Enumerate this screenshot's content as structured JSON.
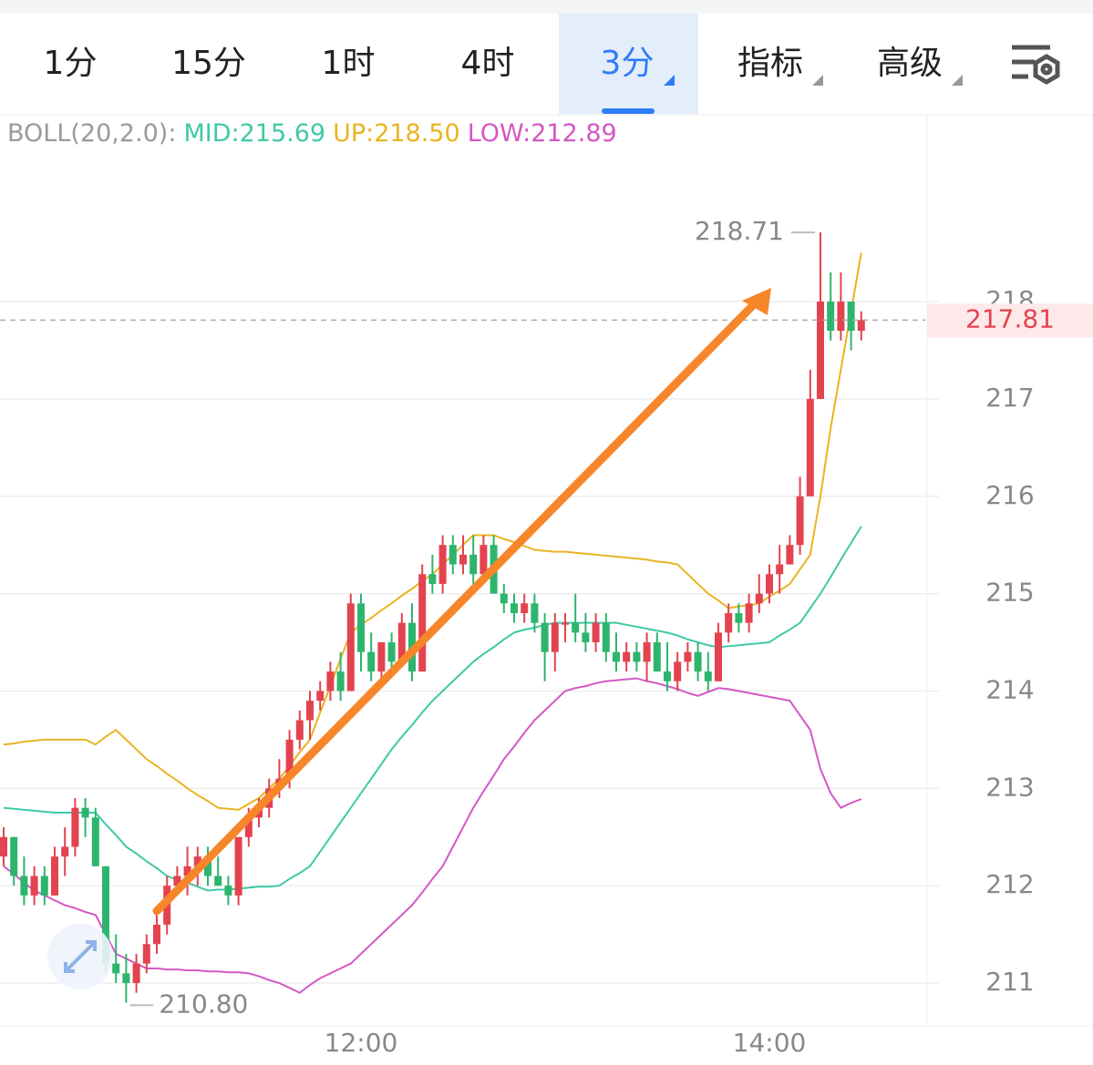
{
  "toolbar": {
    "tabs": [
      "1分",
      "15分",
      "1时",
      "4时",
      "3分",
      "指标",
      "高级"
    ],
    "selected": 4
  },
  "chart_data": {
    "type": "candlestick",
    "legend": [
      "BOLL(20,2.0):",
      "MID:215.69",
      "UP:218.50",
      "LOW:212.89"
    ],
    "categories": [
      null,
      null,
      null,
      null,
      null,
      null,
      null,
      null,
      null,
      null,
      null,
      null,
      null,
      null,
      null,
      null,
      null,
      null,
      null,
      null,
      null,
      null,
      null,
      null,
      null,
      null,
      null,
      null,
      null,
      null,
      null,
      null,
      null,
      null,
      null,
      "12:00",
      null,
      null,
      null,
      null,
      null,
      null,
      null,
      null,
      null,
      null,
      null,
      null,
      null,
      null,
      null,
      null,
      null,
      null,
      null,
      null,
      null,
      null,
      null,
      null,
      null,
      null,
      null,
      null,
      null,
      null,
      null,
      null,
      null,
      null,
      null,
      null,
      null,
      null,
      null,
      "14:00",
      null,
      null,
      null,
      null,
      null,
      null,
      null,
      null,
      null
    ],
    "open": [
      212.3,
      212.5,
      212.1,
      211.9,
      212.1,
      211.9,
      212.3,
      212.4,
      212.8,
      212.7,
      212.2,
      211.2,
      211.1,
      211.0,
      211.2,
      211.4,
      211.6,
      212.0,
      212.1,
      212.2,
      212.3,
      212.1,
      212.0,
      211.9,
      212.5,
      212.7,
      212.8,
      213.0,
      213.1,
      213.5,
      213.7,
      213.9,
      214.0,
      214.2,
      214.0,
      214.9,
      214.4,
      214.2,
      214.5,
      214.3,
      214.7,
      214.2,
      215.2,
      215.1,
      215.5,
      215.3,
      215.4,
      215.2,
      215.5,
      215.0,
      214.9,
      214.8,
      214.9,
      214.7,
      214.4,
      214.7,
      214.7,
      214.6,
      214.5,
      214.7,
      214.4,
      214.3,
      214.4,
      214.3,
      214.5,
      214.2,
      214.1,
      214.3,
      214.4,
      214.2,
      214.1,
      214.6,
      214.8,
      214.7,
      214.9,
      215.0,
      215.2,
      215.3,
      215.5,
      216.0,
      217.0,
      218.0,
      217.7,
      218.0,
      217.7
    ],
    "high": [
      212.6,
      212.5,
      212.3,
      212.2,
      212.2,
      212.4,
      212.6,
      212.9,
      212.9,
      212.8,
      212.2,
      211.5,
      211.3,
      211.3,
      211.5,
      211.7,
      212.1,
      212.2,
      212.4,
      212.4,
      212.4,
      212.3,
      212.1,
      212.5,
      212.8,
      212.9,
      213.1,
      213.3,
      213.6,
      213.8,
      214.0,
      214.1,
      214.3,
      214.4,
      215.0,
      215.0,
      214.6,
      214.5,
      214.6,
      214.8,
      214.9,
      215.3,
      215.4,
      215.6,
      215.6,
      215.6,
      215.6,
      215.6,
      215.6,
      215.1,
      215.0,
      215.0,
      215.0,
      214.8,
      214.8,
      214.8,
      215.0,
      214.8,
      214.8,
      214.8,
      214.6,
      214.5,
      214.5,
      214.6,
      214.6,
      214.5,
      214.4,
      214.5,
      214.5,
      214.4,
      214.7,
      214.9,
      214.9,
      215.0,
      215.2,
      215.3,
      215.5,
      215.6,
      216.2,
      217.3,
      218.71,
      218.3,
      218.3,
      218.0,
      217.9
    ],
    "low": [
      212.2,
      212.0,
      211.8,
      211.8,
      211.8,
      211.9,
      212.1,
      212.3,
      212.5,
      212.2,
      211.1,
      211.0,
      210.8,
      210.9,
      211.1,
      211.3,
      211.5,
      211.9,
      211.9,
      212.0,
      212.0,
      212.0,
      211.8,
      211.8,
      212.4,
      212.6,
      212.7,
      212.9,
      213.0,
      213.4,
      213.5,
      213.8,
      213.9,
      213.9,
      214.0,
      214.2,
      214.1,
      214.1,
      214.2,
      214.3,
      214.1,
      214.2,
      215.0,
      215.0,
      215.2,
      215.2,
      215.1,
      215.1,
      215.0,
      214.8,
      214.7,
      214.7,
      214.6,
      214.1,
      214.2,
      214.5,
      214.5,
      214.4,
      214.4,
      214.3,
      214.2,
      214.2,
      214.2,
      214.1,
      214.2,
      214.0,
      214.0,
      214.2,
      214.1,
      214.0,
      214.1,
      214.5,
      214.6,
      214.6,
      214.8,
      214.9,
      215.0,
      215.3,
      215.4,
      216.0,
      217.0,
      217.6,
      217.6,
      217.5,
      217.6
    ],
    "close": [
      212.5,
      212.1,
      211.9,
      212.1,
      211.9,
      212.3,
      212.4,
      212.8,
      212.7,
      212.2,
      211.2,
      211.1,
      211.0,
      211.2,
      211.4,
      211.6,
      212.0,
      212.1,
      212.2,
      212.3,
      212.1,
      212.0,
      211.9,
      212.5,
      212.7,
      212.8,
      213.0,
      213.1,
      213.5,
      213.7,
      213.9,
      214.0,
      214.2,
      214.0,
      214.9,
      214.4,
      214.2,
      214.5,
      214.3,
      214.7,
      214.2,
      215.2,
      215.1,
      215.5,
      215.3,
      215.4,
      215.2,
      215.5,
      215.0,
      214.9,
      214.8,
      214.9,
      214.7,
      214.4,
      214.7,
      214.7,
      214.6,
      214.5,
      214.7,
      214.4,
      214.3,
      214.4,
      214.3,
      214.5,
      214.2,
      214.1,
      214.3,
      214.4,
      214.2,
      214.1,
      214.6,
      214.8,
      214.7,
      214.9,
      215.0,
      215.2,
      215.3,
      215.5,
      216.0,
      217.0,
      218.0,
      217.7,
      218.0,
      217.7,
      217.81
    ],
    "up_color": "#e3434f",
    "down_color": "#2db56d",
    "series": [
      {
        "color": "#3fc9a6",
        "values": [
          212.8,
          212.79,
          212.78,
          212.77,
          212.76,
          212.75,
          212.75,
          212.75,
          212.75,
          212.75,
          212.63,
          212.52,
          212.4,
          212.33,
          212.25,
          212.18,
          212.1,
          212.06,
          212.03,
          211.99,
          211.95,
          211.96,
          211.96,
          211.97,
          211.98,
          211.99,
          211.99,
          212.0,
          212.07,
          212.13,
          212.2,
          212.35,
          212.5,
          212.65,
          212.8,
          212.95,
          213.1,
          213.25,
          213.4,
          213.53,
          213.65,
          213.78,
          213.9,
          214.0,
          214.1,
          214.2,
          214.3,
          214.38,
          214.45,
          214.53,
          214.6,
          214.63,
          214.65,
          214.68,
          214.7,
          214.7,
          214.7,
          214.7,
          214.7,
          214.7,
          214.7,
          214.68,
          214.66,
          214.64,
          214.62,
          214.6,
          214.57,
          214.53,
          214.5,
          214.47,
          214.45,
          214.46,
          214.47,
          214.48,
          214.49,
          214.5,
          214.57,
          214.63,
          214.7,
          214.85,
          215.0,
          215.17,
          215.35,
          215.52,
          215.69
        ]
      },
      {
        "color": "#e9b421",
        "values": [
          213.45,
          213.46,
          213.48,
          213.49,
          213.5,
          213.5,
          213.5,
          213.5,
          213.5,
          213.45,
          213.53,
          213.6,
          213.5,
          213.4,
          213.3,
          213.23,
          213.15,
          213.08,
          213.0,
          212.93,
          212.87,
          212.8,
          212.79,
          212.78,
          212.84,
          212.9,
          213.0,
          213.1,
          213.23,
          213.37,
          213.5,
          213.78,
          214.05,
          214.33,
          214.6,
          214.68,
          214.75,
          214.83,
          214.9,
          214.98,
          215.05,
          215.13,
          215.2,
          215.3,
          215.4,
          215.5,
          215.6,
          215.6,
          215.6,
          215.56,
          215.53,
          215.49,
          215.45,
          215.44,
          215.43,
          215.43,
          215.42,
          215.41,
          215.4,
          215.39,
          215.38,
          215.37,
          215.36,
          215.35,
          215.33,
          215.32,
          215.3,
          215.2,
          215.1,
          215.0,
          214.93,
          214.85,
          214.87,
          214.88,
          214.9,
          214.97,
          215.03,
          215.1,
          215.25,
          215.4,
          216.0,
          216.7,
          217.3,
          217.9,
          218.5
        ]
      },
      {
        "color": "#d457c4",
        "values": [
          212.2,
          212.12,
          212.03,
          211.95,
          211.9,
          211.85,
          211.8,
          211.77,
          211.73,
          211.7,
          211.5,
          211.3,
          211.25,
          211.2,
          211.15,
          211.15,
          211.14,
          211.14,
          211.13,
          211.13,
          211.12,
          211.12,
          211.11,
          211.11,
          211.1,
          211.07,
          211.03,
          211.0,
          210.95,
          210.9,
          210.98,
          211.05,
          211.1,
          211.15,
          211.2,
          211.3,
          211.4,
          211.5,
          211.6,
          211.7,
          211.8,
          211.93,
          212.07,
          212.2,
          212.4,
          212.6,
          212.8,
          212.97,
          213.13,
          213.3,
          213.43,
          213.57,
          213.7,
          213.8,
          213.9,
          214.0,
          214.03,
          214.05,
          214.08,
          214.1,
          214.11,
          214.12,
          214.13,
          214.1,
          214.08,
          214.05,
          214.02,
          213.98,
          213.95,
          213.99,
          214.03,
          214.02,
          214.0,
          213.98,
          213.96,
          213.94,
          213.92,
          213.9,
          213.75,
          213.6,
          213.2,
          212.95,
          212.8,
          212.85,
          212.89
        ]
      }
    ],
    "high_label": 218.71,
    "low_label": {
      "value": 210.8,
      "label": "210.80"
    },
    "last_price": 217.81,
    "ylim": [
      210.57,
      219.9
    ],
    "yticks": [
      211,
      212,
      213,
      214,
      215,
      216,
      217,
      218
    ],
    "grid": true
  }
}
